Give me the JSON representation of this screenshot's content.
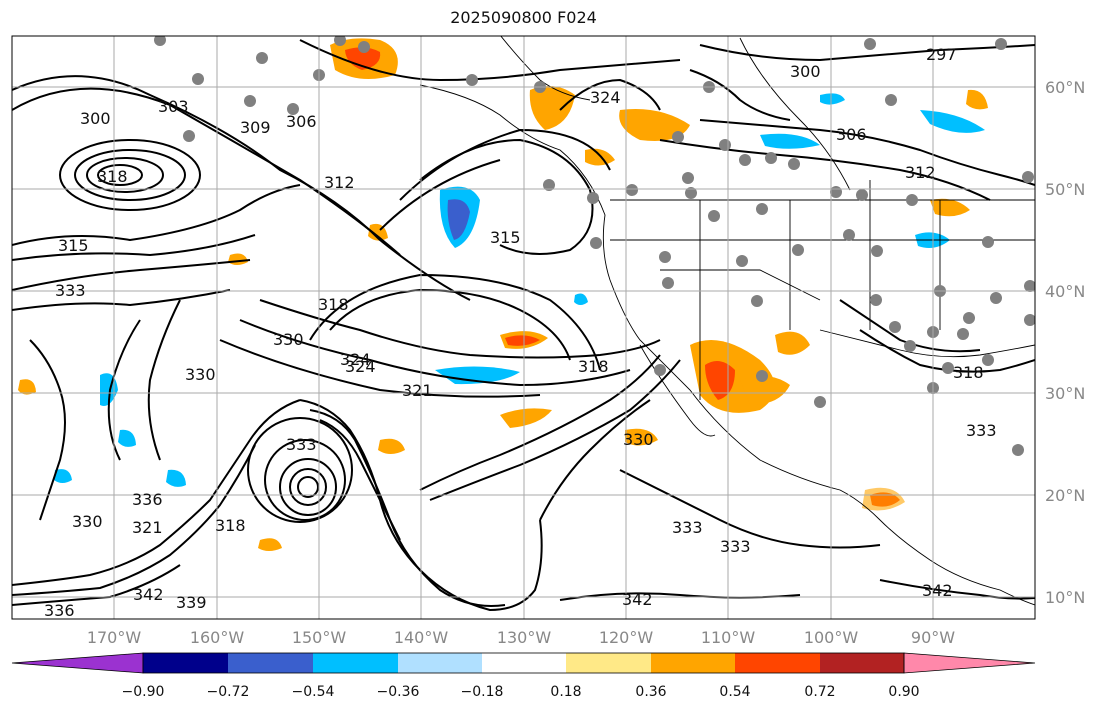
{
  "map": {
    "title": "2025090800 F024",
    "lon_labels": [
      "170°W",
      "160°W",
      "150°W",
      "140°W",
      "130°W",
      "120°W",
      "110°W",
      "100°W",
      "90°W"
    ],
    "lat_labels": [
      "60°N",
      "50°N",
      "40°N",
      "30°N",
      "20°N",
      "10°N"
    ],
    "contour_labels": [
      "300",
      "303",
      "306",
      "309",
      "318",
      "315",
      "333",
      "330",
      "312",
      "318",
      "315",
      "324",
      "321",
      "318",
      "330",
      "324",
      "336",
      "321",
      "330",
      "333",
      "318",
      "342",
      "339",
      "336",
      "333",
      "333",
      "342",
      "306",
      "300",
      "297",
      "324",
      "312",
      "318",
      "330",
      "333",
      "342"
    ],
    "colorbar": {
      "ticks": [
        "−0.90",
        "−0.72",
        "−0.54",
        "−0.36",
        "−0.18",
        "0.18",
        "0.36",
        "0.54",
        "0.72",
        "0.90"
      ],
      "colors": [
        "#9b32d0",
        "#00008b",
        "#3a5fcd",
        "#00bfff",
        "#b0e0ff",
        "#ffffff",
        "#ffe987",
        "#ffa500",
        "#ff4500",
        "#b22222",
        "#ff88aa"
      ]
    },
    "colors": {
      "contour": "#000000",
      "station": "#808080",
      "grid": "#aaaaaa"
    }
  }
}
